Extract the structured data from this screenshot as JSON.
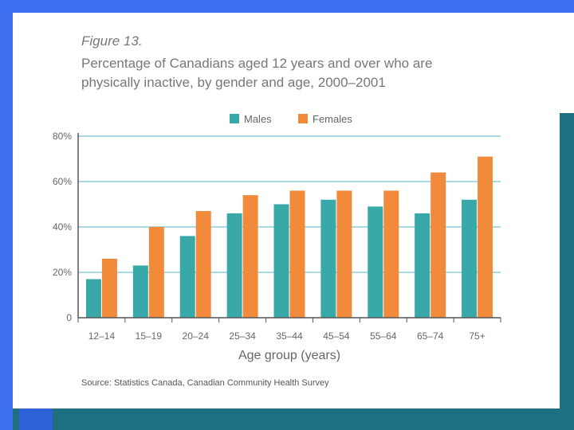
{
  "figure": {
    "label": "Figure 13.",
    "title_line1": "Percentage of Canadians aged 12 years and over who are",
    "title_line2": "physically inactive, by gender and age, 2000–2001",
    "source": "Source: Statistics Canada, Canadian Community Health Survey"
  },
  "colors": {
    "males": "#38a9a8",
    "females": "#f28a3c",
    "gridline": "#8ecfdc",
    "axis": "#555555",
    "tick_text": "#666666"
  },
  "chart_data": {
    "type": "bar",
    "title": "Percentage of Canadians aged 12 years and over who are physically inactive, by gender and age, 2000–2001",
    "xlabel": "Age group (years)",
    "ylabel": "",
    "ylim": [
      0,
      80
    ],
    "yticks": [
      0,
      20,
      40,
      60,
      80
    ],
    "ytick_labels": [
      "0",
      "20%",
      "40%",
      "60%",
      "80%"
    ],
    "grid": true,
    "legend_position": "top",
    "categories": [
      "12–14",
      "15–19",
      "20–24",
      "25–34",
      "35–44",
      "45–54",
      "55–64",
      "65–74",
      "75+"
    ],
    "series": [
      {
        "name": "Males",
        "values": [
          17,
          23,
          36,
          46,
          50,
          52,
          49,
          46,
          52
        ]
      },
      {
        "name": "Females",
        "values": [
          26,
          40,
          47,
          54,
          56,
          56,
          56,
          64,
          71
        ]
      }
    ]
  }
}
